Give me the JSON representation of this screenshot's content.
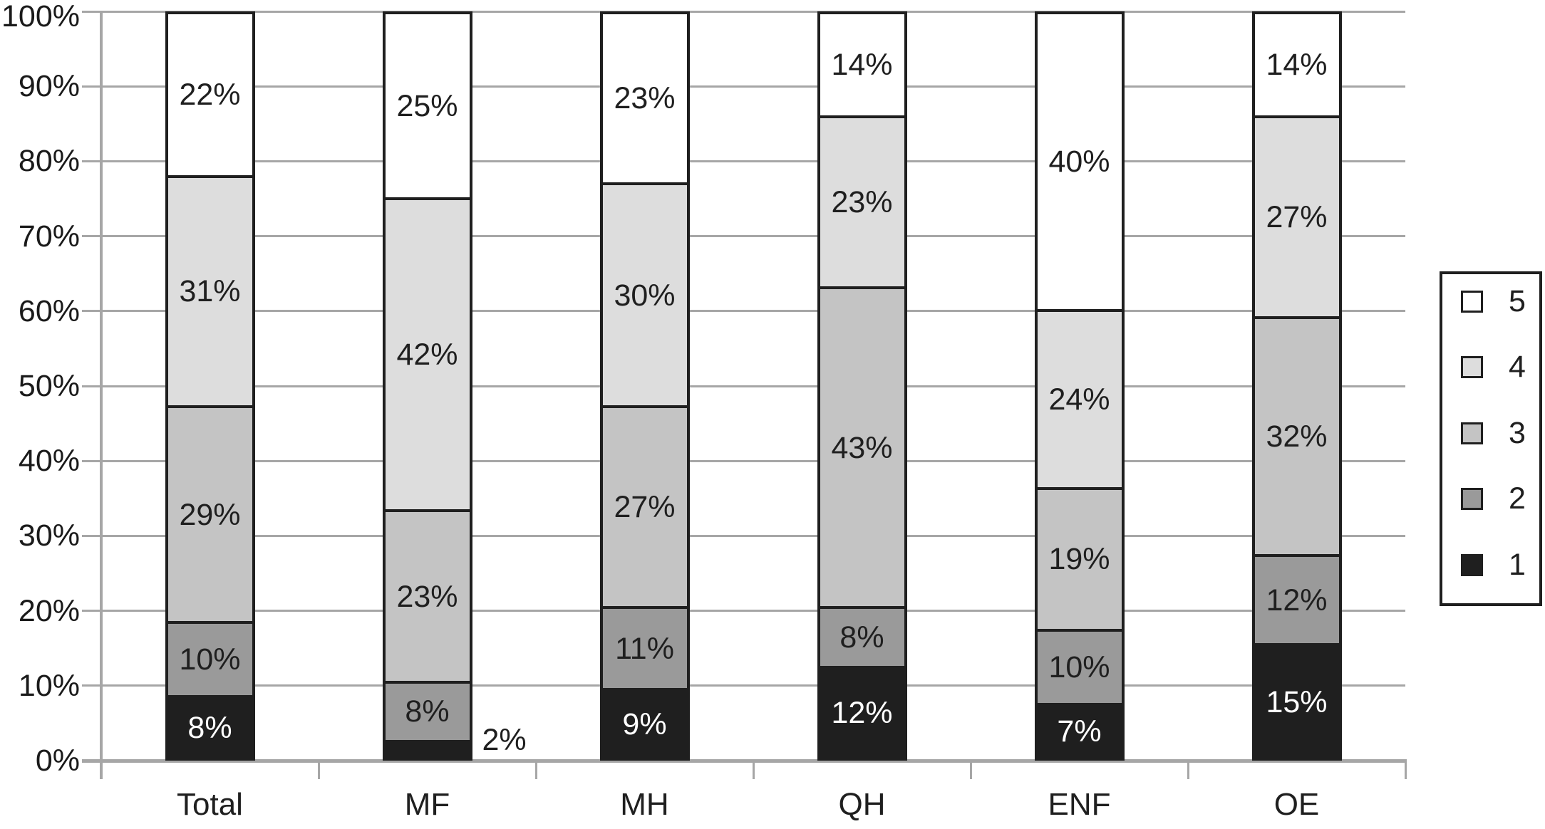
{
  "chart_data": {
    "type": "bar",
    "stacked": true,
    "percent_stacked": true,
    "title": "",
    "xlabel": "",
    "ylabel": "",
    "categories": [
      "Total",
      "MF",
      "MH",
      "QH",
      "ENF",
      "OE"
    ],
    "series": [
      {
        "name": "1",
        "color": "#1f1f1f",
        "label_color": "#ffffff",
        "values": [
          8,
          2,
          9,
          12,
          7,
          15
        ]
      },
      {
        "name": "2",
        "color": "#9a9a9a",
        "label_color": "#1f1f1f",
        "values": [
          10,
          8,
          11,
          8,
          10,
          12
        ]
      },
      {
        "name": "3",
        "color": "#c4c4c4",
        "label_color": "#1f1f1f",
        "values": [
          29,
          23,
          27,
          43,
          19,
          32
        ]
      },
      {
        "name": "4",
        "color": "#dddddd",
        "label_color": "#1f1f1f",
        "values": [
          31,
          42,
          30,
          23,
          24,
          27
        ]
      },
      {
        "name": "5",
        "color": "#ffffff",
        "label_color": "#1f1f1f",
        "values": [
          22,
          25,
          23,
          14,
          40,
          14
        ]
      }
    ],
    "data_label_suffix": "%",
    "outside_label_threshold": 4,
    "ylim": [
      0,
      100
    ],
    "y_tick_step": 10,
    "y_tick_labels": [
      "0%",
      "10%",
      "20%",
      "30%",
      "40%",
      "50%",
      "60%",
      "70%",
      "80%",
      "90%",
      "100%"
    ],
    "grid": true,
    "legend": {
      "position": "right",
      "entries": [
        "5",
        "4",
        "3",
        "2",
        "1"
      ]
    }
  },
  "colors": {
    "gridline": "#a6a6a6",
    "axis": "#a6a6a6",
    "bar_border": "#1f1f1f",
    "background": "#ffffff",
    "text": "#1f1f1f"
  }
}
